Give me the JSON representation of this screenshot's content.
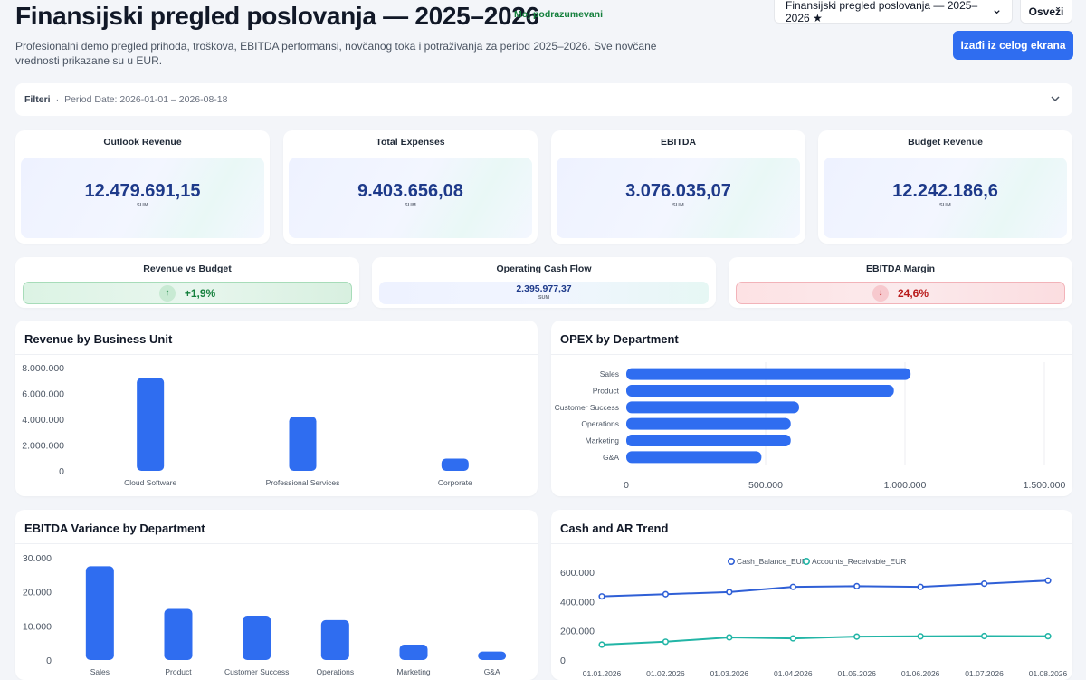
{
  "header": {
    "title": "Finansijski pregled poslovanja — 2025–2026",
    "badge": "Moj podrazumevani",
    "subtitle": "Profesionalni demo pregled prihoda, troškova, EBITDA performansi, novčanog toka i potraživanja za period 2025–2026. Sve novčane vrednosti prikazane su u EUR.",
    "dashboard_select": "Finansijski pregled poslovanja — 2025–2026 ★",
    "refresh_label": "Osveži",
    "fullscreen_label": "Izađi iz celog ekrana"
  },
  "filters": {
    "label": "Filteri",
    "separator": "·",
    "period": "Period Date: 2026-01-01 – 2026-08-18"
  },
  "kpis": [
    {
      "title": "Outlook Revenue",
      "value": "12.479.691,15",
      "agg": "SUM"
    },
    {
      "title": "Total Expenses",
      "value": "9.403.656,08",
      "agg": "SUM"
    },
    {
      "title": "EBITDA",
      "value": "3.076.035,07",
      "agg": "SUM"
    },
    {
      "title": "Budget Revenue",
      "value": "12.242.186,6",
      "agg": "SUM"
    }
  ],
  "kpis2": [
    {
      "title": "Revenue vs Budget",
      "value": "+1,9%",
      "arrow": "↑",
      "status": "positive",
      "color": "#15803d"
    },
    {
      "title": "Operating Cash Flow",
      "value": "2.395.977,37",
      "agg": "SUM"
    },
    {
      "title": "EBITDA Margin",
      "value": "24,6%",
      "arrow": "↓",
      "status": "negative",
      "color": "#b91c1c"
    }
  ],
  "colors": {
    "accent": "#2f6df0",
    "bar": "#2f6df0",
    "cash": "#2f5fd6",
    "ar": "#22b5a6"
  },
  "chart_data": [
    {
      "type": "bar",
      "title": "Revenue by Business Unit",
      "categories": [
        "Cloud Software",
        "Professional Services",
        "Corporate"
      ],
      "values": [
        7200000,
        4200000,
        950000
      ],
      "ylim": [
        0,
        8000000
      ],
      "yticks": [
        0,
        2000000,
        4000000,
        6000000,
        8000000
      ],
      "ytick_labels": [
        "0",
        "2.000.000",
        "4.000.000",
        "6.000.000",
        "8.000.000"
      ]
    },
    {
      "type": "bar",
      "orientation": "horizontal",
      "title": "OPEX by Department",
      "categories": [
        "Sales",
        "Product",
        "Customer Success",
        "Operations",
        "Marketing",
        "G&A"
      ],
      "values": [
        1020000,
        960000,
        620000,
        590000,
        590000,
        485000
      ],
      "xlim": [
        0,
        1500000
      ],
      "xticks": [
        0,
        500000,
        1000000,
        1500000
      ],
      "xtick_labels": [
        "0",
        "500.000",
        "1.000.000",
        "1.500.000"
      ]
    },
    {
      "type": "bar",
      "title": "EBITDA Variance by Department",
      "categories": [
        "Sales",
        "Product",
        "Customer Success",
        "Operations",
        "Marketing",
        "G&A"
      ],
      "values": [
        27500,
        15000,
        13000,
        11700,
        4500,
        2500
      ],
      "ylim": [
        0,
        30000
      ],
      "yticks": [
        0,
        10000,
        20000,
        30000
      ],
      "ytick_labels": [
        "0",
        "10.000",
        "20.000",
        "30.000"
      ]
    },
    {
      "type": "line",
      "title": "Cash and AR Trend",
      "x": [
        "01.01.2026",
        "01.02.2026",
        "01.03.2026",
        "01.04.2026",
        "01.05.2026",
        "01.06.2026",
        "01.07.2026",
        "01.08.2026"
      ],
      "series": [
        {
          "name": "Cash_Balance_EUR",
          "values": [
            435000,
            450000,
            465000,
            500000,
            505000,
            500000,
            522000,
            543000
          ]
        },
        {
          "name": "Accounts_Receivable_EUR",
          "values": [
            105000,
            125000,
            155000,
            148000,
            160000,
            162000,
            164000,
            163000
          ]
        }
      ],
      "ylim": [
        0,
        600000
      ],
      "yticks": [
        0,
        200000,
        400000,
        600000
      ],
      "ytick_labels": [
        "0",
        "200.000",
        "400.000",
        "600.000"
      ],
      "legend": "top-center"
    }
  ]
}
